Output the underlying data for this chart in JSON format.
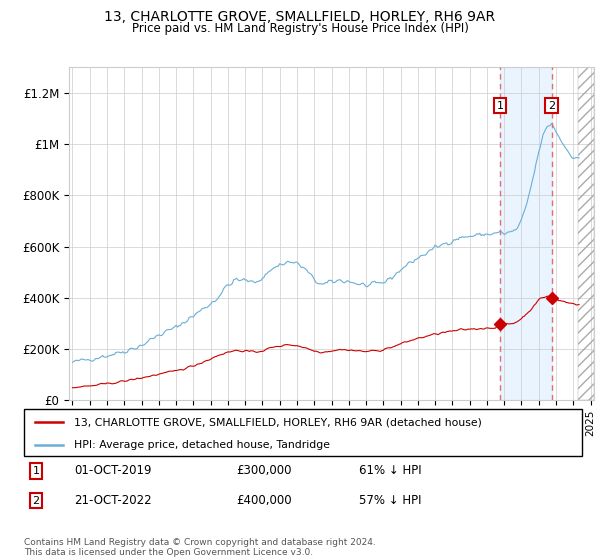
{
  "title": "13, CHARLOTTE GROVE, SMALLFIELD, HORLEY, RH6 9AR",
  "subtitle": "Price paid vs. HM Land Registry's House Price Index (HPI)",
  "ylabel_ticks": [
    "£0",
    "£200K",
    "£400K",
    "£600K",
    "£800K",
    "£1M",
    "£1.2M"
  ],
  "ytick_values": [
    0,
    200000,
    400000,
    600000,
    800000,
    1000000,
    1200000
  ],
  "ylim": [
    0,
    1300000
  ],
  "hpi_color": "#6aaed6",
  "price_color": "#cc0000",
  "dashed_color": "#e07070",
  "shade_color": "#ddeeff",
  "transaction1": {
    "date": "01-OCT-2019",
    "price": 300000,
    "pct": "61% ↓ HPI",
    "year_x": 2019.75
  },
  "transaction2": {
    "date": "21-OCT-2022",
    "price": 400000,
    "pct": "57% ↓ HPI",
    "year_x": 2022.75
  },
  "legend_label_red": "13, CHARLOTTE GROVE, SMALLFIELD, HORLEY, RH6 9AR (detached house)",
  "legend_label_blue": "HPI: Average price, detached house, Tandridge",
  "footer": "Contains HM Land Registry data © Crown copyright and database right 2024.\nThis data is licensed under the Open Government Licence v3.0.",
  "xlim_left": 1995.0,
  "xlim_right": 2025.2,
  "hatch_start": 2024.25
}
